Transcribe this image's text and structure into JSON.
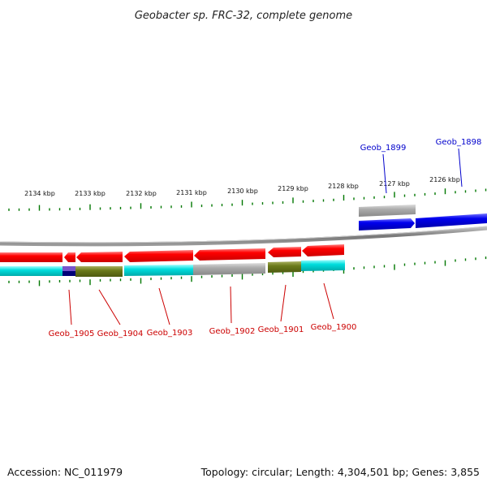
{
  "title": "Geobacter sp. FRC-32, complete genome",
  "footer": {
    "accession": "Accession: NC_011979",
    "summary": "Topology: circular; Length: 4,304,501 bp; Genes: 3,855"
  },
  "colors": {
    "forward_strand": "#0000ee",
    "reverse_strand": "#ff0000",
    "tick": "#007700",
    "backbone": "#888888",
    "label_red": "#cc0000",
    "label_blue": "#0000cc"
  },
  "scale_labels": [
    "2134 kbp",
    "2133 kbp",
    "2132 kbp",
    "2131 kbp",
    "2130 kbp",
    "2129 kbp",
    "2128 kbp",
    "2127 kbp",
    "2126 kbp"
  ],
  "gene_labels_reverse": [
    "Geob_1905",
    "Geob_1904",
    "Geob_1903",
    "Geob_1902",
    "Geob_1901",
    "Geob_1900"
  ],
  "gene_labels_forward": [
    "Geob_1899",
    "Geob_1898"
  ]
}
